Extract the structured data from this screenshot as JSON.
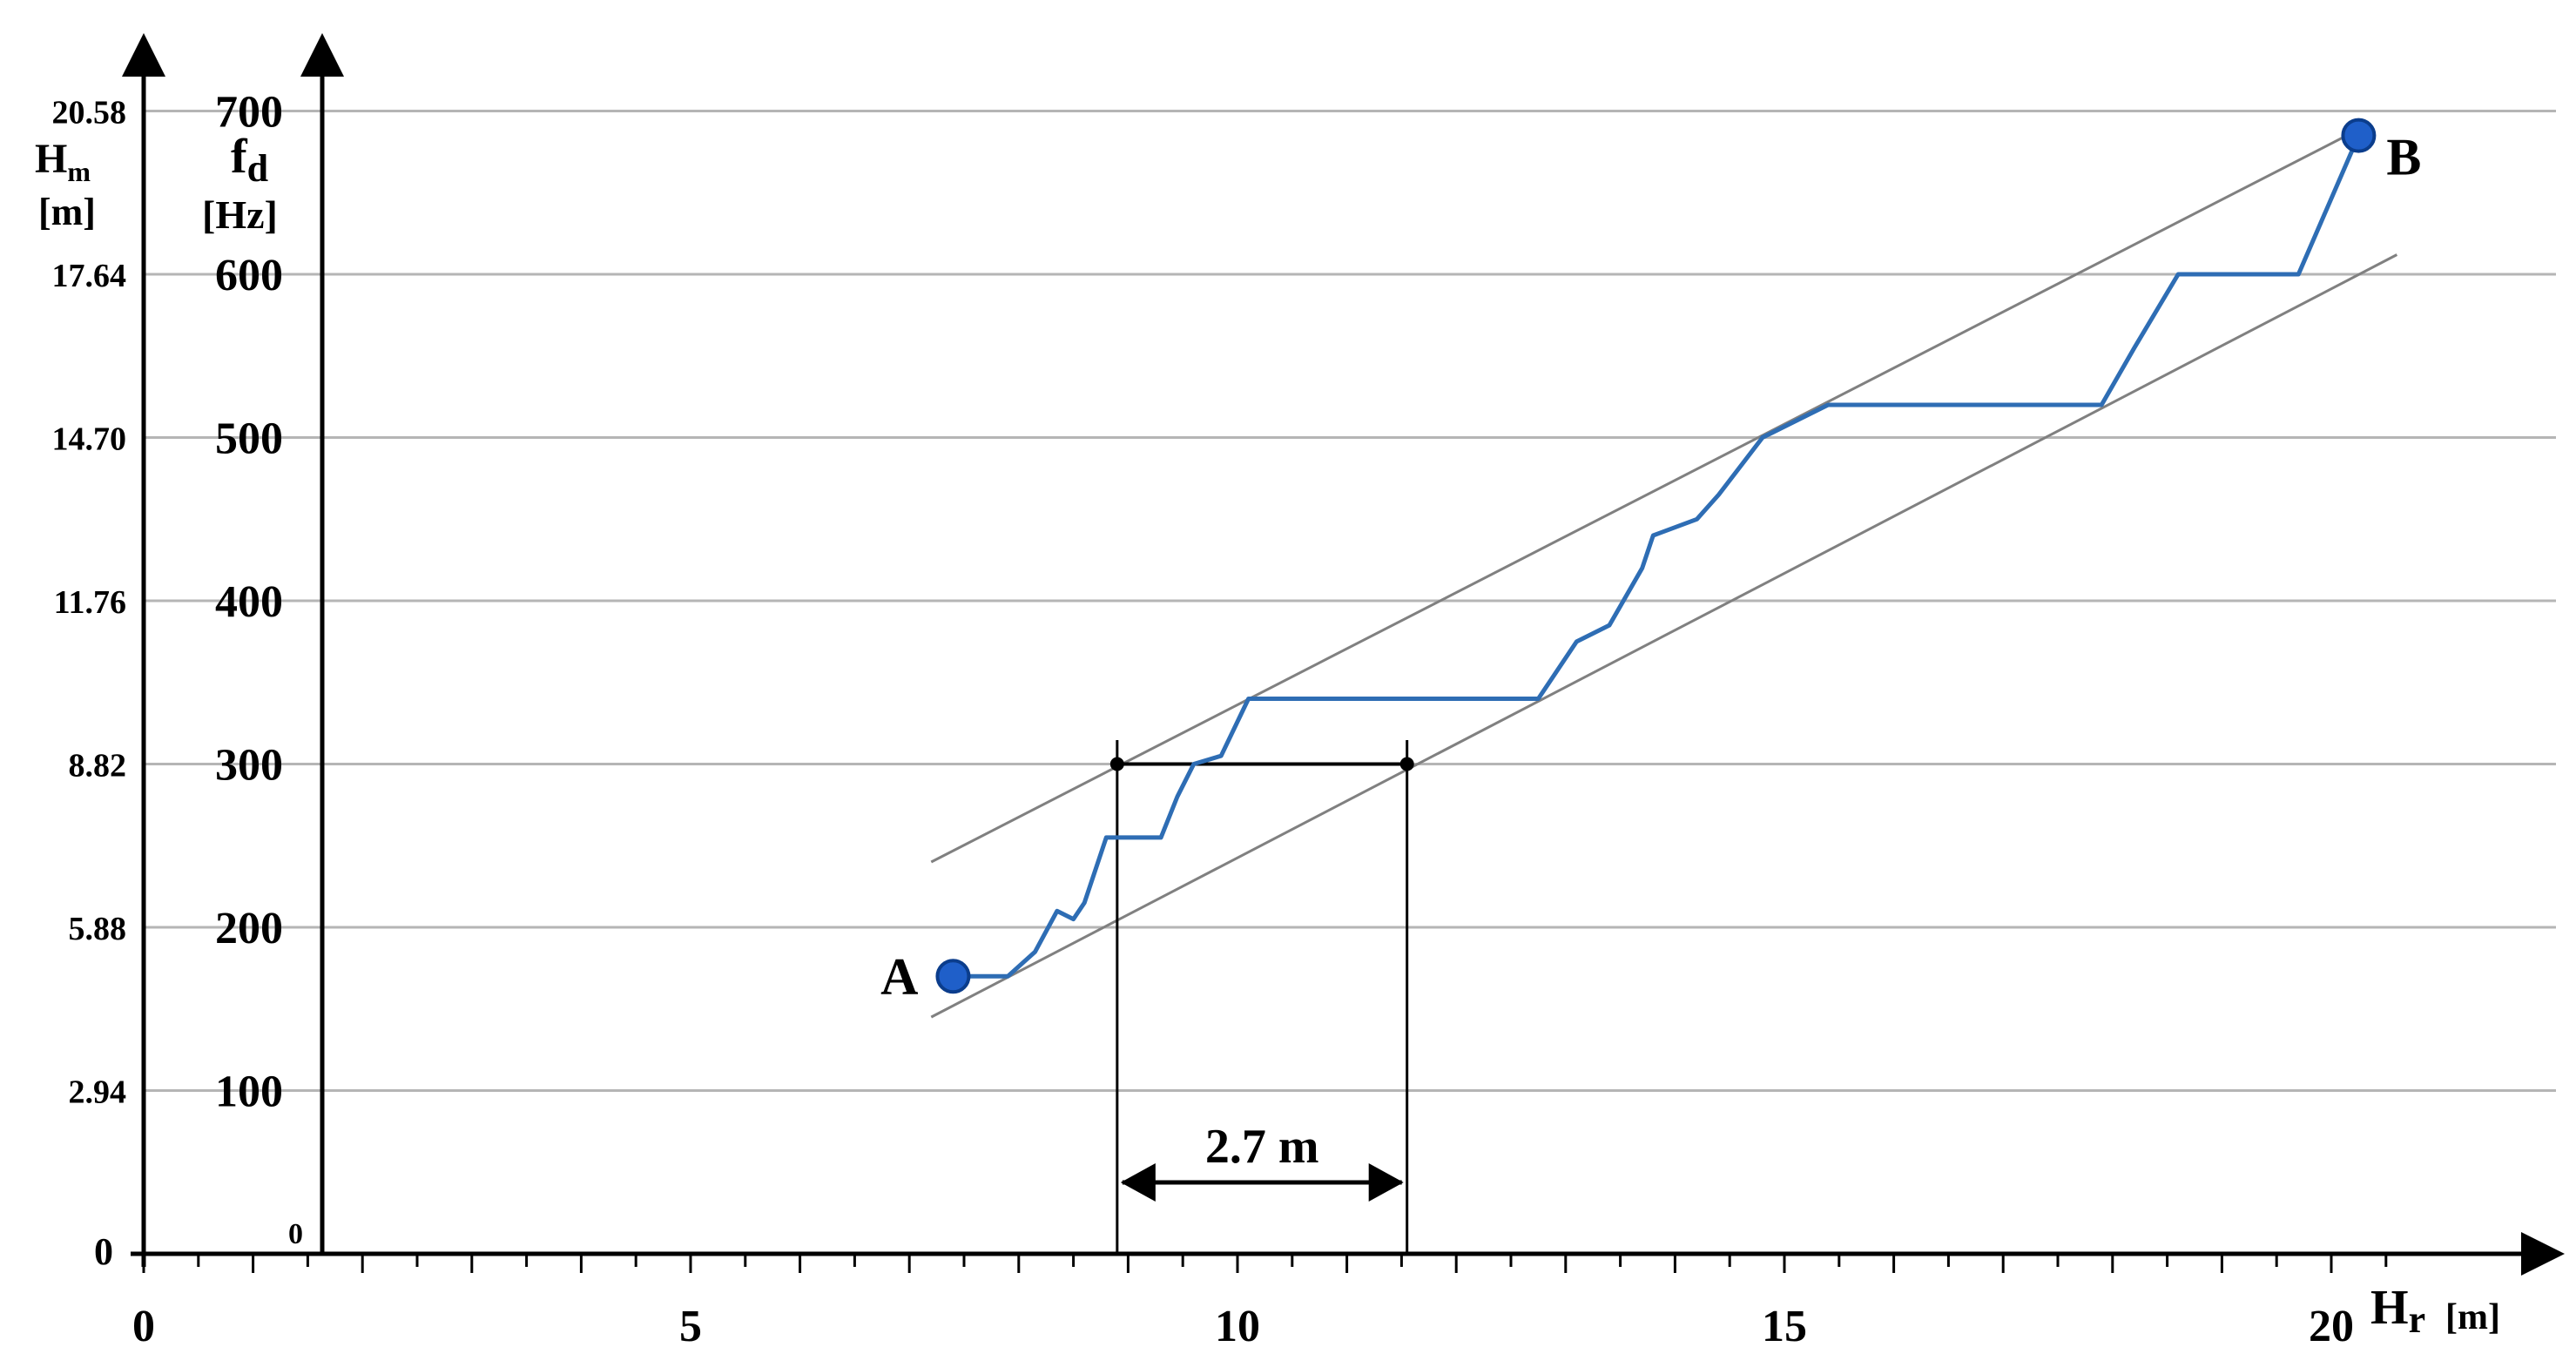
{
  "chart_data": {
    "type": "line",
    "axes": {
      "x": {
        "label_main": "H",
        "label_sub": "r",
        "label_unit": "[m]",
        "range": [
          0,
          21.2
        ],
        "ticks": [
          "0",
          "5",
          "10",
          "15",
          "20"
        ],
        "tick_values": [
          0,
          5,
          10,
          15,
          20
        ]
      },
      "y_left_outer": {
        "label_main": "H",
        "label_sub": "m",
        "label_unit": "[m]",
        "ticks": [
          "0",
          "2.94",
          "5.88",
          "8.82",
          "11.76",
          "14.70",
          "17.64",
          "20.58"
        ],
        "tick_values": [
          0,
          2.94,
          5.88,
          8.82,
          11.76,
          14.7,
          17.64,
          20.58
        ]
      },
      "y_left_inner": {
        "label_main": "f",
        "label_sub": "d",
        "label_unit": "[Hz]",
        "range": [
          0,
          700
        ],
        "ticks": [
          "0",
          "100",
          "200",
          "300",
          "400",
          "500",
          "600",
          "700"
        ],
        "tick_values": [
          0,
          100,
          200,
          300,
          400,
          500,
          600,
          700
        ]
      }
    },
    "grid": true,
    "series": [
      {
        "color": "#2e6db4",
        "points": [
          [
            7.4,
            170
          ],
          [
            7.9,
            170
          ],
          [
            8.15,
            185
          ],
          [
            8.35,
            210
          ],
          [
            8.5,
            205
          ],
          [
            8.6,
            215
          ],
          [
            8.8,
            255
          ],
          [
            9.3,
            255
          ],
          [
            9.45,
            280
          ],
          [
            9.6,
            300
          ],
          [
            9.85,
            305
          ],
          [
            10.1,
            340
          ],
          [
            12.75,
            340
          ],
          [
            13.1,
            375
          ],
          [
            13.4,
            385
          ],
          [
            13.7,
            420
          ],
          [
            13.8,
            440
          ],
          [
            14.2,
            450
          ],
          [
            14.4,
            465
          ],
          [
            14.8,
            500
          ],
          [
            15.4,
            520
          ],
          [
            17.9,
            520
          ],
          [
            18.2,
            555
          ],
          [
            18.6,
            600
          ],
          [
            19.7,
            600
          ],
          [
            20.25,
            685
          ]
        ]
      }
    ],
    "bounds": [
      {
        "color": "#808080",
        "points": [
          [
            7.2,
            240
          ],
          [
            20.2,
            687
          ]
        ]
      },
      {
        "color": "#808080",
        "points": [
          [
            7.2,
            145
          ],
          [
            20.6,
            612
          ]
        ]
      }
    ],
    "annotations": {
      "point_a": {
        "label": "A",
        "x": 7.4,
        "y": 170
      },
      "point_b": {
        "label": "B",
        "x": 20.25,
        "y": 685
      },
      "interval": {
        "x_start": 8.9,
        "x_end": 11.55,
        "y": 300,
        "label": "2.7 m"
      }
    }
  }
}
